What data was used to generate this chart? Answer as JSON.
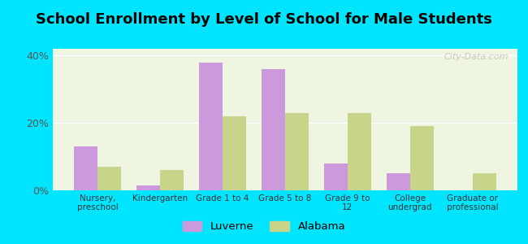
{
  "title": "School Enrollment by Level of School for Male Students",
  "categories": [
    "Nursery,\npreschool",
    "Kindergarten",
    "Grade 1 to 4",
    "Grade 5 to 8",
    "Grade 9 to\n12",
    "College\nundergrad",
    "Graduate or\nprofessional"
  ],
  "luverne": [
    13,
    1.5,
    38,
    36,
    8,
    5,
    0
  ],
  "alabama": [
    7,
    6,
    22,
    23,
    23,
    19,
    5
  ],
  "luverne_color": "#cc99dd",
  "alabama_color": "#c8d48a",
  "background_outer": "#00e5ff",
  "background_inner": "#eef5e0",
  "ylim": [
    0,
    42
  ],
  "yticks": [
    0,
    20,
    40
  ],
  "ytick_labels": [
    "0%",
    "20%",
    "40%"
  ],
  "bar_width": 0.38,
  "title_fontsize": 13,
  "legend_labels": [
    "Luverne",
    "Alabama"
  ],
  "watermark": "City-Data.com"
}
